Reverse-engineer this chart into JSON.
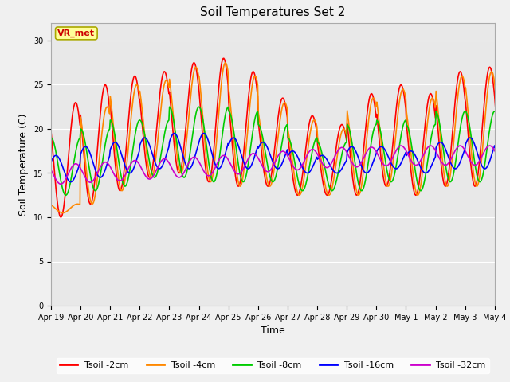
{
  "title": "Soil Temperatures Set 2",
  "xlabel": "Time",
  "ylabel": "Soil Temperature (C)",
  "ylim": [
    0,
    32
  ],
  "yticks": [
    0,
    5,
    10,
    15,
    20,
    25,
    30
  ],
  "fig_bg_color": "#f0f0f0",
  "plot_bg_color": "#e8e8e8",
  "annotation_text": "VR_met",
  "annotation_bg": "#ffff99",
  "annotation_border": "#aaa800",
  "annotation_text_color": "#cc0000",
  "series_colors": [
    "#ff0000",
    "#ff8800",
    "#00cc00",
    "#0000ff",
    "#cc00cc"
  ],
  "series_labels": [
    "Tsoil -2cm",
    "Tsoil -4cm",
    "Tsoil -8cm",
    "Tsoil -16cm",
    "Tsoil -32cm"
  ],
  "xtick_labels": [
    "Apr 19",
    "Apr 20",
    "Apr 21",
    "Apr 22",
    "Apr 23",
    "Apr 24",
    "Apr 25",
    "Apr 26",
    "Apr 27",
    "Apr 28",
    "Apr 29",
    "Apr 30",
    "May 1",
    "May 2",
    "May 3",
    "May 4"
  ],
  "peak_2cm": [
    23.0,
    25.0,
    26.0,
    26.5,
    27.5,
    28.0,
    26.5,
    23.5,
    21.5,
    20.5,
    24.0,
    25.0,
    24.0,
    26.5,
    27.0,
    27.0
  ],
  "trough_2cm": [
    10.0,
    11.5,
    13.0,
    14.5,
    15.0,
    14.0,
    13.5,
    13.5,
    12.5,
    12.5,
    12.5,
    13.5,
    12.5,
    13.5,
    13.5,
    13.0
  ],
  "peak_4cm": [
    11.5,
    22.5,
    25.0,
    25.5,
    27.0,
    27.5,
    26.0,
    23.0,
    21.0,
    20.0,
    23.5,
    24.5,
    23.5,
    26.0,
    26.5,
    26.5
  ],
  "trough_4cm": [
    10.5,
    11.5,
    13.0,
    14.5,
    15.0,
    14.0,
    13.5,
    13.5,
    12.5,
    12.5,
    12.5,
    13.5,
    12.5,
    13.5,
    13.5,
    13.0
  ],
  "peak_8cm": [
    19.0,
    20.0,
    21.0,
    21.0,
    22.5,
    22.5,
    22.0,
    20.5,
    19.0,
    18.5,
    20.5,
    21.0,
    20.5,
    22.0,
    22.0,
    22.0
  ],
  "trough_8cm": [
    12.5,
    13.0,
    13.5,
    14.5,
    14.5,
    14.0,
    14.0,
    14.0,
    13.0,
    13.0,
    13.0,
    14.0,
    13.0,
    14.0,
    14.0,
    13.5
  ],
  "peak_16cm": [
    17.0,
    18.0,
    18.5,
    19.0,
    19.5,
    19.5,
    19.0,
    18.5,
    17.5,
    17.0,
    18.0,
    18.0,
    17.5,
    18.5,
    19.0,
    18.5
  ],
  "trough_16cm": [
    14.0,
    14.5,
    15.0,
    15.5,
    15.5,
    15.5,
    15.5,
    15.5,
    15.0,
    15.0,
    15.0,
    15.5,
    15.0,
    15.5,
    15.5,
    15.5
  ],
  "base_32cm": [
    14.8,
    15.0,
    15.2,
    15.4,
    15.6,
    15.8,
    16.0,
    16.3,
    16.5,
    16.8,
    16.8,
    17.0,
    17.0,
    17.0,
    17.0,
    17.0
  ],
  "amp_32cm": 1.1,
  "phase_32cm_lag_hrs": 14,
  "peak_hour_2cm": 14,
  "phase_lag_4cm_hrs": 1.5,
  "phase_lag_8cm_hrs": 4.0,
  "phase_lag_16cm_hrs": 8.0,
  "linewidth": 1.2,
  "title_fontsize": 11,
  "label_fontsize": 9,
  "tick_fontsize": 7,
  "legend_fontsize": 8
}
